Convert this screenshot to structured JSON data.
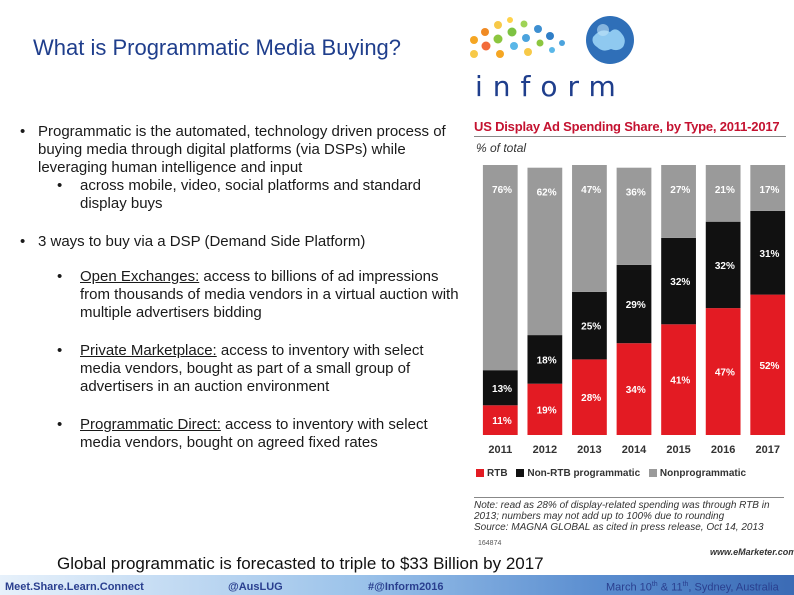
{
  "slide": {
    "title": "What is Programmatic Media Buying?",
    "logo_word": "inform",
    "bullets": [
      {
        "text": "Programmatic is the automated, technology driven process of buying media through digital platforms (via DSPs) while leveraging human intelligence and input"
      },
      {
        "sub": "across mobile, video, social platforms and standard display buys"
      },
      {
        "text": "3 ways to buy via a DSP (Demand Side Platform)"
      }
    ],
    "subitems": [
      {
        "head": "Open Exchanges:",
        "text": " access to billions of ad impressions from thousands of media vendors in a virtual auction with multiple advertisers bidding"
      },
      {
        "head": "Private Marketplace:",
        "text": " access to inventory with select media vendors, bought as part of a small group of advertisers in an auction environment"
      },
      {
        "head": "Programmatic Direct:",
        "text": " access to inventory with select media vendors, bought on agreed fixed rates"
      }
    ],
    "forecast": "Global programmatic is forecasted to triple to $33 Billion by 2017"
  },
  "chart_data": {
    "type": "bar",
    "stacked": true,
    "title": "US Display Ad Spending Share, by Type, 2011-2017",
    "subtitle": "% of total",
    "categories": [
      "2011",
      "2012",
      "2013",
      "2014",
      "2015",
      "2016",
      "2017"
    ],
    "series": [
      {
        "name": "RTB",
        "color": "#e31b23",
        "values": [
          11,
          19,
          28,
          34,
          41,
          47,
          52
        ]
      },
      {
        "name": "Non-RTB programmatic",
        "color": "#111111",
        "values": [
          13,
          18,
          25,
          29,
          32,
          32,
          31
        ]
      },
      {
        "name": "Nonprogrammatic",
        "color": "#9a9a9a",
        "values": [
          76,
          62,
          47,
          36,
          27,
          21,
          17
        ]
      }
    ],
    "label_suffix": "%",
    "ylim": [
      0,
      100
    ],
    "note": "Note: read as 28% of display-related spending was through RTB in 2013; numbers may not add up to 100% due to rounding",
    "source": "Source: MAGNA GLOBAL as cited in press release, Oct 14, 2013",
    "chart_id": "164874",
    "watermark": "www.eMarketer.com"
  },
  "footer": {
    "left": "Meet.Share.Learn.Connect",
    "handle": "@AusLUG",
    "hashtag": "#@Inform2016",
    "date_pre": "March 10",
    "th1": "th",
    "date_mid": " & 11",
    "th2": "th",
    "date_post": ", Sydney, Australia"
  },
  "colors": {
    "title": "#1f3e8c",
    "chart_title": "#c41230",
    "footer_gradient_start": "#3b6bb5",
    "footer_gradient_end": "#e7f1fb"
  }
}
